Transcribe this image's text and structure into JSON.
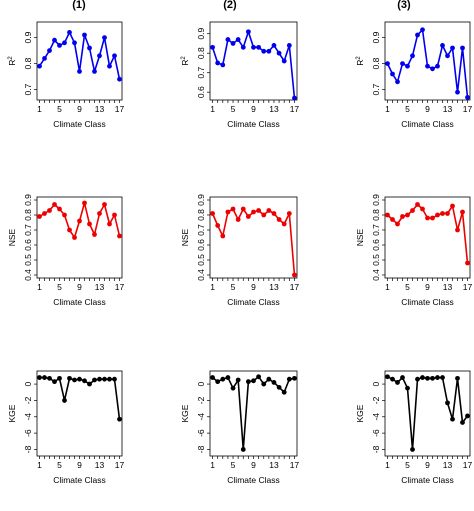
{
  "column_titles": [
    "(1)",
    "(2)",
    "(3)"
  ],
  "colors": {
    "R2": "#0000ee",
    "NSE": "#ee0000",
    "KGE": "#000000"
  },
  "chart_data": [
    {
      "type": "line",
      "row": "R2",
      "column": "(1)",
      "xlabel": "Climate Class",
      "ylabel": "R2",
      "x": [
        1,
        2,
        3,
        4,
        5,
        6,
        7,
        8,
        9,
        10,
        11,
        12,
        13,
        14,
        15,
        16,
        17
      ],
      "xticks": [
        1,
        5,
        9,
        13,
        17
      ],
      "yticks": [
        0.7,
        0.8,
        0.9
      ],
      "ylim": [
        0.66,
        0.96
      ],
      "series": [
        {
          "color": "#0000ee",
          "values": [
            0.79,
            0.82,
            0.85,
            0.89,
            0.87,
            0.88,
            0.92,
            0.88,
            0.77,
            0.91,
            0.86,
            0.77,
            0.83,
            0.9,
            0.79,
            0.83,
            0.74
          ]
        }
      ]
    },
    {
      "type": "line",
      "row": "R2",
      "column": "(2)",
      "xlabel": "Climate Class",
      "ylabel": "R2",
      "x": [
        1,
        2,
        3,
        4,
        5,
        6,
        7,
        8,
        9,
        10,
        11,
        12,
        13,
        14,
        15,
        16,
        17
      ],
      "xticks": [
        1,
        5,
        9,
        13,
        17
      ],
      "yticks": [
        0.6,
        0.7,
        0.8,
        0.9
      ],
      "ylim": [
        0.56,
        0.96
      ],
      "series": [
        {
          "color": "#0000ee",
          "values": [
            0.83,
            0.75,
            0.74,
            0.87,
            0.85,
            0.87,
            0.83,
            0.91,
            0.83,
            0.83,
            0.81,
            0.81,
            0.84,
            0.8,
            0.76,
            0.84,
            0.57
          ]
        }
      ]
    },
    {
      "type": "line",
      "row": "R2",
      "column": "(3)",
      "xlabel": "Climate Class",
      "ylabel": "R2",
      "x": [
        1,
        2,
        3,
        4,
        5,
        6,
        7,
        8,
        9,
        10,
        11,
        12,
        13,
        14,
        15,
        16,
        17
      ],
      "xticks": [
        1,
        5,
        9,
        13,
        17
      ],
      "yticks": [
        0.7,
        0.8,
        0.9
      ],
      "ylim": [
        0.66,
        0.96
      ],
      "series": [
        {
          "color": "#0000ee",
          "values": [
            0.8,
            0.76,
            0.73,
            0.8,
            0.79,
            0.83,
            0.91,
            0.93,
            0.79,
            0.78,
            0.79,
            0.87,
            0.83,
            0.86,
            0.69,
            0.86,
            0.67
          ]
        }
      ]
    },
    {
      "type": "line",
      "row": "NSE",
      "column": "(1)",
      "xlabel": "Climate Class",
      "ylabel": "NSE",
      "x": [
        1,
        2,
        3,
        4,
        5,
        6,
        7,
        8,
        9,
        10,
        11,
        12,
        13,
        14,
        15,
        16,
        17
      ],
      "xticks": [
        1,
        5,
        9,
        13,
        17
      ],
      "yticks": [
        0.4,
        0.5,
        0.6,
        0.7,
        0.8,
        0.9
      ],
      "ylim": [
        0.38,
        0.92
      ],
      "series": [
        {
          "color": "#ee0000",
          "values": [
            0.79,
            0.81,
            0.83,
            0.87,
            0.84,
            0.8,
            0.7,
            0.65,
            0.76,
            0.88,
            0.74,
            0.67,
            0.81,
            0.87,
            0.74,
            0.8,
            0.66
          ]
        }
      ]
    },
    {
      "type": "line",
      "row": "NSE",
      "column": "(2)",
      "xlabel": "Climate Class",
      "ylabel": "NSE",
      "x": [
        1,
        2,
        3,
        4,
        5,
        6,
        7,
        8,
        9,
        10,
        11,
        12,
        13,
        14,
        15,
        16,
        17
      ],
      "xticks": [
        1,
        5,
        9,
        13,
        17
      ],
      "yticks": [
        0.4,
        0.5,
        0.6,
        0.7,
        0.8,
        0.9
      ],
      "ylim": [
        0.38,
        0.92
      ],
      "series": [
        {
          "color": "#ee0000",
          "values": [
            0.81,
            0.73,
            0.66,
            0.82,
            0.84,
            0.77,
            0.84,
            0.79,
            0.82,
            0.83,
            0.8,
            0.83,
            0.81,
            0.77,
            0.74,
            0.81,
            0.4
          ]
        }
      ]
    },
    {
      "type": "line",
      "row": "NSE",
      "column": "(3)",
      "xlabel": "Climate Class",
      "ylabel": "NSE",
      "x": [
        1,
        2,
        3,
        4,
        5,
        6,
        7,
        8,
        9,
        10,
        11,
        12,
        13,
        14,
        15,
        16,
        17
      ],
      "xticks": [
        1,
        5,
        9,
        13,
        17
      ],
      "yticks": [
        0.4,
        0.5,
        0.6,
        0.7,
        0.8,
        0.9
      ],
      "ylim": [
        0.38,
        0.92
      ],
      "series": [
        {
          "color": "#ee0000",
          "values": [
            0.8,
            0.77,
            0.74,
            0.79,
            0.8,
            0.83,
            0.87,
            0.84,
            0.78,
            0.78,
            0.8,
            0.81,
            0.81,
            0.86,
            0.7,
            0.82,
            0.48
          ]
        }
      ]
    },
    {
      "type": "line",
      "row": "KGE",
      "column": "(1)",
      "xlabel": "Climate Class",
      "ylabel": "KGE",
      "x": [
        1,
        2,
        3,
        4,
        5,
        6,
        7,
        8,
        9,
        10,
        11,
        12,
        13,
        14,
        15,
        16,
        17
      ],
      "xticks": [
        1,
        5,
        9,
        13,
        17
      ],
      "yticks": [
        -8,
        -6,
        -4,
        -2,
        0
      ],
      "ylim": [
        -8.8,
        1.6
      ],
      "series": [
        {
          "color": "#000000",
          "values": [
            0.8,
            0.8,
            0.7,
            0.3,
            0.7,
            -2.0,
            0.7,
            0.5,
            0.6,
            0.4,
            0.0,
            0.5,
            0.6,
            0.6,
            0.6,
            0.6,
            -4.3
          ]
        }
      ]
    },
    {
      "type": "line",
      "row": "KGE",
      "column": "(2)",
      "xlabel": "Climate Class",
      "ylabel": "KGE",
      "x": [
        1,
        2,
        3,
        4,
        5,
        6,
        7,
        8,
        9,
        10,
        11,
        12,
        13,
        14,
        15,
        16,
        17
      ],
      "xticks": [
        1,
        5,
        9,
        13,
        17
      ],
      "yticks": [
        -8,
        -6,
        -4,
        -2,
        0
      ],
      "ylim": [
        -8.8,
        1.6
      ],
      "series": [
        {
          "color": "#000000",
          "values": [
            0.8,
            0.3,
            0.6,
            0.8,
            -0.5,
            0.5,
            -8.0,
            0.3,
            0.4,
            0.9,
            0.0,
            0.6,
            0.2,
            -0.4,
            -1.0,
            0.6,
            0.7
          ]
        }
      ]
    },
    {
      "type": "line",
      "row": "KGE",
      "column": "(3)",
      "xlabel": "Climate Class",
      "ylabel": "KGE",
      "x": [
        1,
        2,
        3,
        4,
        5,
        6,
        7,
        8,
        9,
        10,
        11,
        12,
        13,
        14,
        15,
        16,
        17
      ],
      "xticks": [
        1,
        5,
        9,
        13,
        17
      ],
      "yticks": [
        -8,
        -6,
        -4,
        -2,
        0
      ],
      "ylim": [
        -8.8,
        1.6
      ],
      "series": [
        {
          "color": "#000000",
          "values": [
            0.9,
            0.6,
            0.2,
            0.8,
            -0.5,
            -8.0,
            0.6,
            0.8,
            0.7,
            0.7,
            0.8,
            0.8,
            -2.3,
            -4.3,
            0.7,
            -4.7,
            -3.9
          ]
        }
      ]
    }
  ]
}
